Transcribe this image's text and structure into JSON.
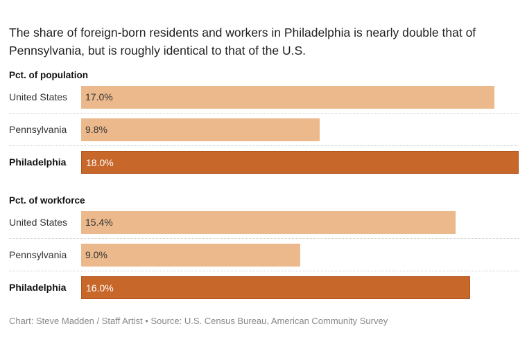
{
  "title": "The share of foreign-born residents and workers in Philadelphia is nearly double that of Pennsylvania, but is roughly identical to that of the U.S.",
  "footer": "Chart: Steve Madden / Staff Artist • Source: U.S. Census Bureau, American Community Survey",
  "colors": {
    "base": "#ebb98b",
    "highlight": "#c8672a",
    "highlight_text": "#ffffff",
    "base_text": "#333333"
  },
  "chart_data": [
    {
      "type": "bar",
      "title": "Pct. of population",
      "categories": [
        "United States",
        "Pennsylvania",
        "Philadelphia"
      ],
      "values": [
        17.0,
        9.8,
        18.0
      ],
      "labels": [
        "17.0%",
        "9.8%",
        "18.0%"
      ],
      "highlight": "Philadelphia",
      "xlim": [
        0,
        18
      ]
    },
    {
      "type": "bar",
      "title": "Pct. of workforce",
      "categories": [
        "United States",
        "Pennsylvania",
        "Philadelphia"
      ],
      "values": [
        15.4,
        9.0,
        16.0
      ],
      "labels": [
        "15.4%",
        "9.0%",
        "16.0%"
      ],
      "highlight": "Philadelphia",
      "xlim": [
        0,
        18
      ]
    }
  ]
}
